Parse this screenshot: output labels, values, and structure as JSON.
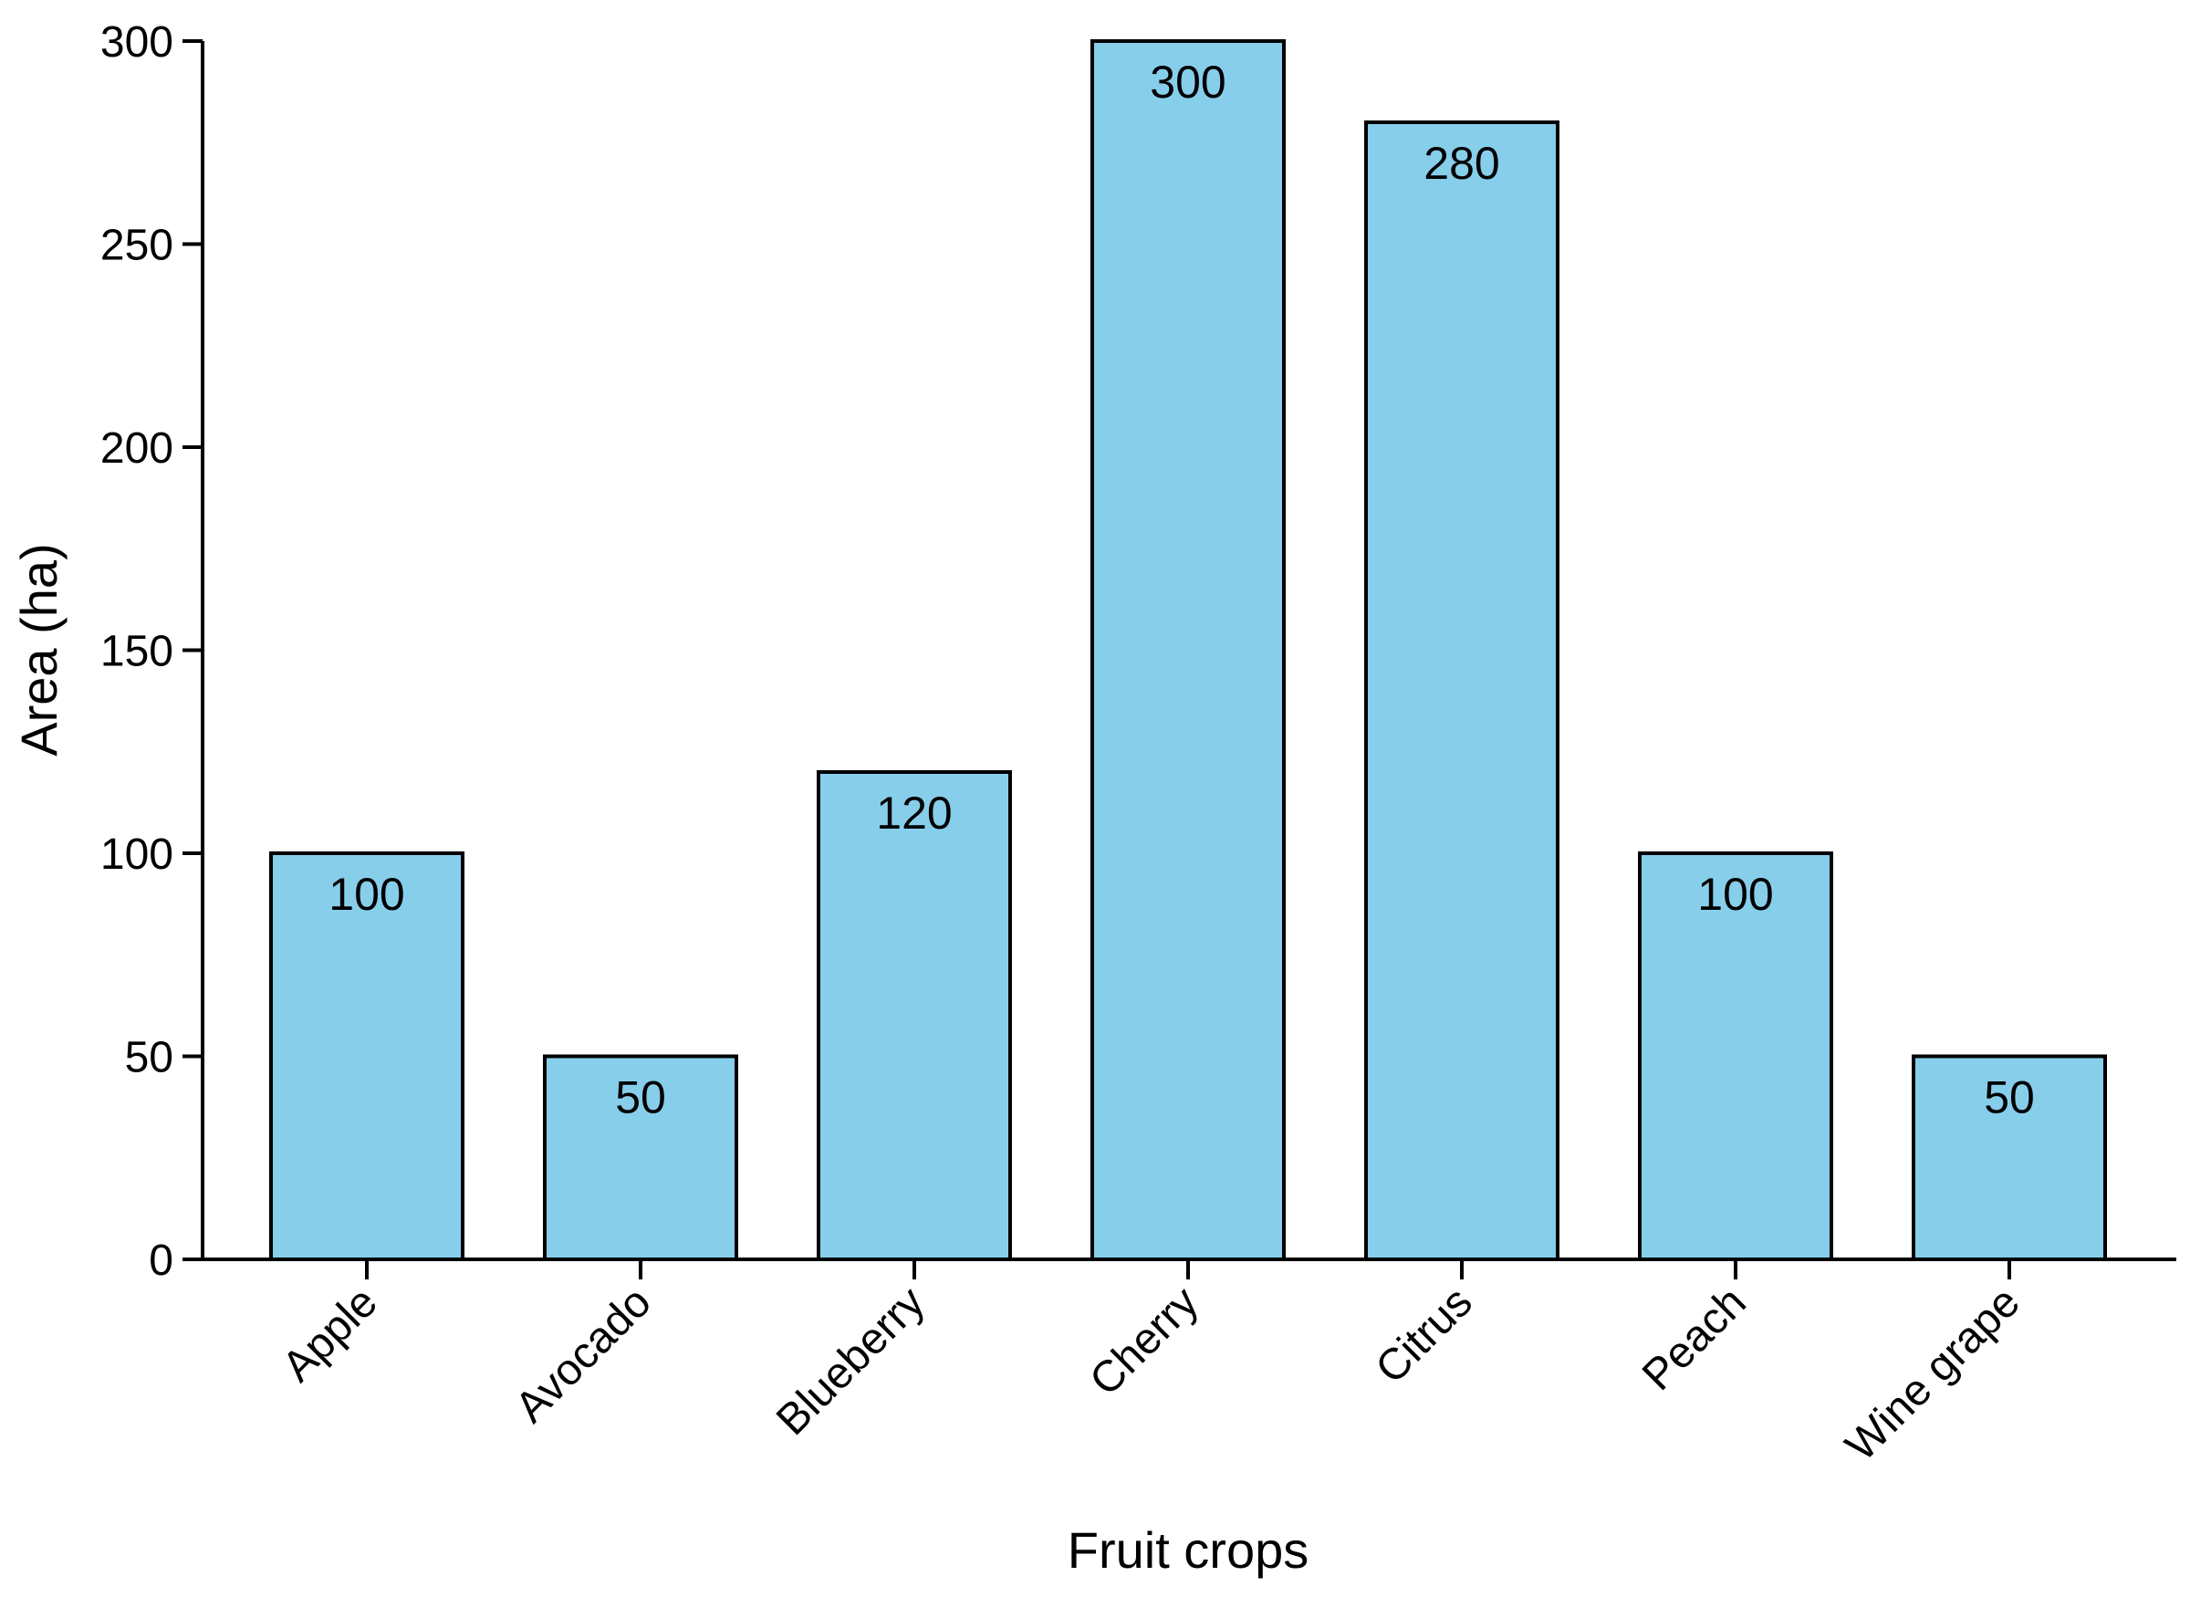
{
  "chart_data": {
    "type": "bar",
    "categories": [
      "Apple",
      "Avocado",
      "Blueberry",
      "Cherry",
      "Citrus",
      "Peach",
      "Wine grape"
    ],
    "values": [
      100,
      50,
      120,
      300,
      280,
      100,
      50
    ],
    "data_labels": [
      "100",
      "50",
      "120",
      "300",
      "280",
      "100",
      "50"
    ],
    "xlabel": "Fruit crops",
    "ylabel": "Area (ha)",
    "ylim": [
      0,
      300
    ],
    "yticks": [
      0,
      50,
      100,
      150,
      200,
      250,
      300
    ],
    "ytick_labels": [
      "0",
      "50",
      "100",
      "150",
      "200",
      "250",
      "300"
    ],
    "grid": false,
    "legend": "none",
    "colors": {
      "bar_fill": "#87CEEB",
      "bar_edge": "#000000",
      "axis": "#000000"
    }
  }
}
